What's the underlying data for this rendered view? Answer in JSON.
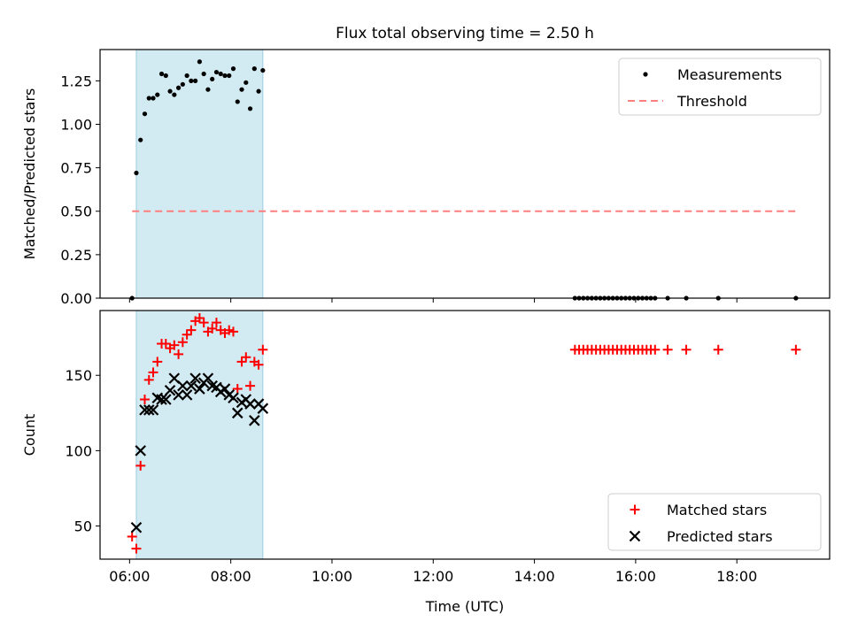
{
  "figure": {
    "title": "Flux total observing time = 2.50 h"
  },
  "chart_data": [
    {
      "type": "scatter",
      "ylabel": "Matched/Predicted stars",
      "ylim": [
        0,
        1.43
      ],
      "xlim": [
        "05:25",
        "19:50"
      ],
      "yticks": [
        "0.00",
        "0.25",
        "0.50",
        "0.75",
        "1.00",
        "1.25"
      ],
      "ytick_values": [
        0,
        0.25,
        0.5,
        0.75,
        1.0,
        1.25
      ],
      "shaded_interval": [
        "06:08",
        "08:38"
      ],
      "shade_color": "#add8e6",
      "legend_position": "upper right",
      "series": [
        {
          "name": "Measurements",
          "marker": "dot",
          "color": "#000000",
          "points": [
            [
              "06:03",
              0.0
            ],
            [
              "06:08",
              0.72
            ],
            [
              "06:13",
              0.91
            ],
            [
              "06:18",
              1.06
            ],
            [
              "06:23",
              1.15
            ],
            [
              "06:28",
              1.15
            ],
            [
              "06:33",
              1.17
            ],
            [
              "06:38",
              1.29
            ],
            [
              "06:43",
              1.28
            ],
            [
              "06:48",
              1.19
            ],
            [
              "06:53",
              1.17
            ],
            [
              "06:58",
              1.21
            ],
            [
              "07:03",
              1.23
            ],
            [
              "07:08",
              1.28
            ],
            [
              "07:13",
              1.25
            ],
            [
              "07:18",
              1.25
            ],
            [
              "07:23",
              1.36
            ],
            [
              "07:28",
              1.29
            ],
            [
              "07:33",
              1.2
            ],
            [
              "07:38",
              1.26
            ],
            [
              "07:43",
              1.3
            ],
            [
              "07:48",
              1.29
            ],
            [
              "07:53",
              1.28
            ],
            [
              "07:58",
              1.28
            ],
            [
              "08:03",
              1.32
            ],
            [
              "08:08",
              1.13
            ],
            [
              "08:13",
              1.2
            ],
            [
              "08:18",
              1.24
            ],
            [
              "08:23",
              1.09
            ],
            [
              "08:28",
              1.32
            ],
            [
              "08:33",
              1.19
            ],
            [
              "08:38",
              1.31
            ],
            [
              "14:48",
              0.0
            ],
            [
              "14:53",
              0.0
            ],
            [
              "14:58",
              0.0
            ],
            [
              "15:03",
              0.0
            ],
            [
              "15:08",
              0.0
            ],
            [
              "15:13",
              0.0
            ],
            [
              "15:18",
              0.0
            ],
            [
              "15:23",
              0.0
            ],
            [
              "15:28",
              0.0
            ],
            [
              "15:33",
              0.0
            ],
            [
              "15:38",
              0.0
            ],
            [
              "15:43",
              0.0
            ],
            [
              "15:48",
              0.0
            ],
            [
              "15:53",
              0.0
            ],
            [
              "15:58",
              0.0
            ],
            [
              "16:03",
              0.0
            ],
            [
              "16:08",
              0.0
            ],
            [
              "16:13",
              0.0
            ],
            [
              "16:18",
              0.0
            ],
            [
              "16:23",
              0.0
            ],
            [
              "16:38",
              0.0
            ],
            [
              "17:00",
              0.0
            ],
            [
              "17:38",
              0.0
            ],
            [
              "19:10",
              0.0
            ]
          ]
        },
        {
          "name": "Threshold",
          "marker": "dashed-line",
          "color": "#ff7f7f",
          "points": [
            [
              "06:03",
              0.5
            ],
            [
              "19:10",
              0.5
            ]
          ]
        }
      ]
    },
    {
      "type": "scatter",
      "ylabel": "Count",
      "xlabel": "Time (UTC)",
      "ylim": [
        28,
        193
      ],
      "xlim": [
        "05:25",
        "19:50"
      ],
      "yticks": [
        "50",
        "100",
        "150"
      ],
      "ytick_values": [
        50,
        100,
        150
      ],
      "xticks": [
        "06:00",
        "08:00",
        "10:00",
        "12:00",
        "14:00",
        "16:00",
        "18:00"
      ],
      "shaded_interval": [
        "06:08",
        "08:38"
      ],
      "shade_color": "#add8e6",
      "legend_position": "lower right",
      "series": [
        {
          "name": "Matched stars",
          "marker": "plus",
          "color": "#ff0000",
          "points": [
            [
              "06:03",
              43
            ],
            [
              "06:08",
              35
            ],
            [
              "06:13",
              90
            ],
            [
              "06:18",
              134
            ],
            [
              "06:23",
              147
            ],
            [
              "06:28",
              152
            ],
            [
              "06:33",
              159
            ],
            [
              "06:38",
              171
            ],
            [
              "06:43",
              171
            ],
            [
              "06:48",
              168
            ],
            [
              "06:53",
              170
            ],
            [
              "06:58",
              164
            ],
            [
              "07:03",
              172
            ],
            [
              "07:08",
              177
            ],
            [
              "07:13",
              180
            ],
            [
              "07:18",
              186
            ],
            [
              "07:23",
              188
            ],
            [
              "07:28",
              185
            ],
            [
              "07:33",
              179
            ],
            [
              "07:38",
              181
            ],
            [
              "07:43",
              185
            ],
            [
              "07:48",
              180
            ],
            [
              "07:53",
              178
            ],
            [
              "07:58",
              180
            ],
            [
              "08:03",
              179
            ],
            [
              "08:08",
              141
            ],
            [
              "08:13",
              159
            ],
            [
              "08:18",
              162
            ],
            [
              "08:23",
              143
            ],
            [
              "08:28",
              159
            ],
            [
              "08:33",
              157
            ],
            [
              "08:38",
              167
            ],
            [
              "14:48",
              167
            ],
            [
              "14:53",
              167
            ],
            [
              "14:58",
              167
            ],
            [
              "15:03",
              167
            ],
            [
              "15:08",
              167
            ],
            [
              "15:13",
              167
            ],
            [
              "15:18",
              167
            ],
            [
              "15:23",
              167
            ],
            [
              "15:28",
              167
            ],
            [
              "15:33",
              167
            ],
            [
              "15:38",
              167
            ],
            [
              "15:43",
              167
            ],
            [
              "15:48",
              167
            ],
            [
              "15:53",
              167
            ],
            [
              "15:58",
              167
            ],
            [
              "16:03",
              167
            ],
            [
              "16:08",
              167
            ],
            [
              "16:13",
              167
            ],
            [
              "16:18",
              167
            ],
            [
              "16:23",
              167
            ],
            [
              "16:38",
              167
            ],
            [
              "17:00",
              167
            ],
            [
              "17:38",
              167
            ],
            [
              "19:10",
              167
            ]
          ]
        },
        {
          "name": "Predicted stars",
          "marker": "x",
          "color": "#000000",
          "points": [
            [
              "06:08",
              49
            ],
            [
              "06:13",
              100
            ],
            [
              "06:18",
              127
            ],
            [
              "06:23",
              127
            ],
            [
              "06:28",
              127
            ],
            [
              "06:33",
              135
            ],
            [
              "06:38",
              134
            ],
            [
              "06:43",
              134
            ],
            [
              "06:48",
              140
            ],
            [
              "06:53",
              148
            ],
            [
              "06:58",
              137
            ],
            [
              "07:03",
              143
            ],
            [
              "07:08",
              137
            ],
            [
              "07:13",
              143
            ],
            [
              "07:18",
              148
            ],
            [
              "07:23",
              141
            ],
            [
              "07:28",
              145
            ],
            [
              "07:33",
              148
            ],
            [
              "07:38",
              143
            ],
            [
              "07:43",
              142
            ],
            [
              "07:48",
              139
            ],
            [
              "07:53",
              141
            ],
            [
              "07:58",
              137
            ],
            [
              "08:03",
              135
            ],
            [
              "08:08",
              125
            ],
            [
              "08:13",
              132
            ],
            [
              "08:18",
              134
            ],
            [
              "08:23",
              131
            ],
            [
              "08:28",
              120
            ],
            [
              "08:33",
              131
            ],
            [
              "08:38",
              128
            ]
          ]
        }
      ]
    }
  ]
}
